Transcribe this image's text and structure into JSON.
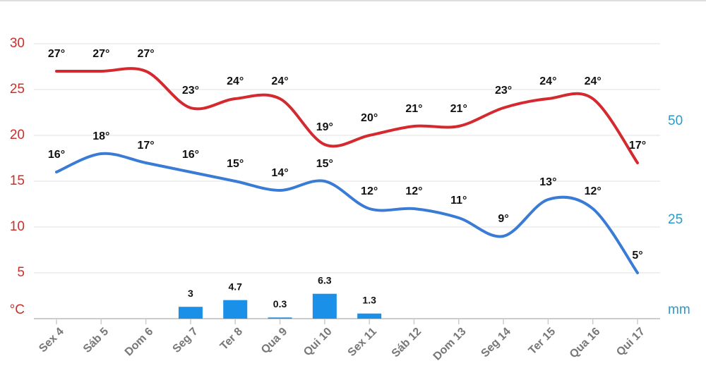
{
  "chart_data": {
    "type": "line",
    "categories": [
      "Sex 4",
      "Sáb 5",
      "Dom 6",
      "Seg 7",
      "Ter 8",
      "Qua 9",
      "Qui 10",
      "Sex 11",
      "Sáb 12",
      "Dom 13",
      "Seg 14",
      "Ter 15",
      "Qua 16",
      "Qui 17"
    ],
    "series": [
      {
        "type": "line",
        "color": "#d42a2f",
        "values": [
          27,
          27,
          27,
          23,
          24,
          24,
          19,
          20,
          21,
          21,
          23,
          24,
          24,
          17
        ],
        "value_labels": [
          "27°",
          "27°",
          "27°",
          "23°",
          "24°",
          "24°",
          "19°",
          "20°",
          "21°",
          "21°",
          "23°",
          "24°",
          "24°",
          "17°"
        ]
      },
      {
        "type": "line",
        "color": "#3a7bd5",
        "values": [
          16,
          18,
          17,
          16,
          15,
          14,
          15,
          12,
          12,
          11,
          9,
          13,
          12,
          5
        ],
        "value_labels": [
          "16°",
          "18°",
          "17°",
          "16°",
          "15°",
          "14°",
          "15°",
          "12°",
          "12°",
          "11°",
          "9°",
          "13°",
          "12°",
          "5°"
        ]
      },
      {
        "type": "bar",
        "axis": "y2",
        "color": "#1a90e8",
        "values": [
          null,
          null,
          null,
          3,
          4.7,
          0.3,
          6.3,
          1.3,
          null,
          null,
          null,
          null,
          null,
          null
        ]
      }
    ],
    "ylim": [
      0,
      30
    ],
    "yticks": [
      {
        "value": 0,
        "label": "°C"
      },
      5,
      10,
      15,
      20,
      25,
      30
    ],
    "y2lim": [
      0,
      69.6
    ],
    "y2ticks": [
      {
        "value": 0,
        "label": "mm"
      },
      25,
      50
    ],
    "grid": true
  }
}
